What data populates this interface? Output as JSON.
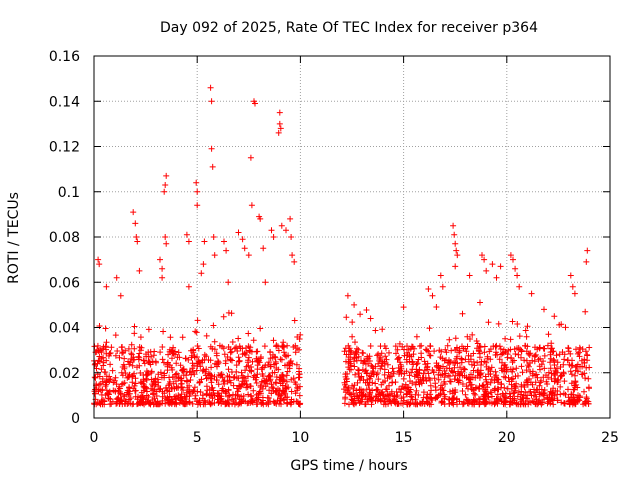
{
  "chart_data": {
    "type": "scatter",
    "title": "Day 092 of 2025, Rate Of TEC Index for receiver p364",
    "xlabel": "GPS time / hours",
    "ylabel": "ROTI / TECUs",
    "xlim": [
      0,
      25
    ],
    "ylim": [
      0,
      0.16
    ],
    "xticks": [
      0,
      5,
      10,
      15,
      20,
      25
    ],
    "yticks": [
      0,
      0.02,
      0.04,
      0.06,
      0.08,
      0.1,
      0.12,
      0.14,
      0.16
    ],
    "xtick_labels": [
      "0",
      "5",
      "10",
      "15",
      "20",
      "25"
    ],
    "ytick_labels": [
      "0",
      "0.02",
      "0.04",
      "0.06",
      "0.08",
      "0.1",
      "0.12",
      "0.14",
      "0.16"
    ],
    "grid": true,
    "marker": "+",
    "color": "#ff0000",
    "segments": [
      {
        "start": 0.0,
        "end": 10.0
      },
      {
        "start": 12.1,
        "end": 24.0
      }
    ],
    "outliers": [
      {
        "x": 0.2,
        "y": 0.07
      },
      {
        "x": 0.25,
        "y": 0.068
      },
      {
        "x": 0.6,
        "y": 0.058
      },
      {
        "x": 1.1,
        "y": 0.062
      },
      {
        "x": 1.3,
        "y": 0.054
      },
      {
        "x": 1.9,
        "y": 0.091
      },
      {
        "x": 2.0,
        "y": 0.086
      },
      {
        "x": 2.05,
        "y": 0.08
      },
      {
        "x": 2.1,
        "y": 0.078
      },
      {
        "x": 2.2,
        "y": 0.065
      },
      {
        "x": 3.2,
        "y": 0.07
      },
      {
        "x": 3.3,
        "y": 0.066
      },
      {
        "x": 3.5,
        "y": 0.107
      },
      {
        "x": 3.45,
        "y": 0.103
      },
      {
        "x": 3.4,
        "y": 0.1
      },
      {
        "x": 3.45,
        "y": 0.08
      },
      {
        "x": 3.5,
        "y": 0.077
      },
      {
        "x": 3.3,
        "y": 0.062
      },
      {
        "x": 4.5,
        "y": 0.081
      },
      {
        "x": 4.6,
        "y": 0.078
      },
      {
        "x": 4.6,
        "y": 0.058
      },
      {
        "x": 4.95,
        "y": 0.104
      },
      {
        "x": 5.0,
        "y": 0.1
      },
      {
        "x": 5.0,
        "y": 0.094
      },
      {
        "x": 5.2,
        "y": 0.064
      },
      {
        "x": 5.35,
        "y": 0.078
      },
      {
        "x": 5.3,
        "y": 0.068
      },
      {
        "x": 5.65,
        "y": 0.146
      },
      {
        "x": 5.7,
        "y": 0.14
      },
      {
        "x": 5.7,
        "y": 0.119
      },
      {
        "x": 5.75,
        "y": 0.111
      },
      {
        "x": 5.8,
        "y": 0.08
      },
      {
        "x": 5.85,
        "y": 0.072
      },
      {
        "x": 6.3,
        "y": 0.078
      },
      {
        "x": 6.4,
        "y": 0.074
      },
      {
        "x": 6.5,
        "y": 0.06
      },
      {
        "x": 7.0,
        "y": 0.082
      },
      {
        "x": 7.2,
        "y": 0.079
      },
      {
        "x": 7.3,
        "y": 0.075
      },
      {
        "x": 7.5,
        "y": 0.072
      },
      {
        "x": 7.6,
        "y": 0.115
      },
      {
        "x": 7.65,
        "y": 0.094
      },
      {
        "x": 7.75,
        "y": 0.14
      },
      {
        "x": 7.8,
        "y": 0.139
      },
      {
        "x": 8.0,
        "y": 0.089
      },
      {
        "x": 8.05,
        "y": 0.088
      },
      {
        "x": 8.2,
        "y": 0.075
      },
      {
        "x": 8.3,
        "y": 0.06
      },
      {
        "x": 8.6,
        "y": 0.083
      },
      {
        "x": 8.7,
        "y": 0.08
      },
      {
        "x": 9.0,
        "y": 0.135
      },
      {
        "x": 9.0,
        "y": 0.13
      },
      {
        "x": 9.05,
        "y": 0.128
      },
      {
        "x": 8.95,
        "y": 0.126
      },
      {
        "x": 9.1,
        "y": 0.085
      },
      {
        "x": 9.3,
        "y": 0.083
      },
      {
        "x": 9.5,
        "y": 0.088
      },
      {
        "x": 9.55,
        "y": 0.08
      },
      {
        "x": 9.6,
        "y": 0.072
      },
      {
        "x": 9.7,
        "y": 0.069
      },
      {
        "x": 12.3,
        "y": 0.054
      },
      {
        "x": 12.6,
        "y": 0.05
      },
      {
        "x": 13.4,
        "y": 0.044
      },
      {
        "x": 15.0,
        "y": 0.049
      },
      {
        "x": 16.2,
        "y": 0.057
      },
      {
        "x": 16.4,
        "y": 0.054
      },
      {
        "x": 16.8,
        "y": 0.063
      },
      {
        "x": 16.9,
        "y": 0.058
      },
      {
        "x": 17.4,
        "y": 0.085
      },
      {
        "x": 17.45,
        "y": 0.081
      },
      {
        "x": 17.5,
        "y": 0.077
      },
      {
        "x": 17.55,
        "y": 0.074
      },
      {
        "x": 17.6,
        "y": 0.072
      },
      {
        "x": 17.5,
        "y": 0.067
      },
      {
        "x": 18.2,
        "y": 0.063
      },
      {
        "x": 18.8,
        "y": 0.072
      },
      {
        "x": 18.9,
        "y": 0.07
      },
      {
        "x": 19.0,
        "y": 0.065
      },
      {
        "x": 19.3,
        "y": 0.068
      },
      {
        "x": 19.5,
        "y": 0.062
      },
      {
        "x": 19.7,
        "y": 0.067
      },
      {
        "x": 20.2,
        "y": 0.072
      },
      {
        "x": 20.3,
        "y": 0.07
      },
      {
        "x": 20.4,
        "y": 0.066
      },
      {
        "x": 20.5,
        "y": 0.063
      },
      {
        "x": 20.6,
        "y": 0.058
      },
      {
        "x": 21.2,
        "y": 0.055
      },
      {
        "x": 21.8,
        "y": 0.048
      },
      {
        "x": 22.3,
        "y": 0.045
      },
      {
        "x": 23.1,
        "y": 0.063
      },
      {
        "x": 23.2,
        "y": 0.058
      },
      {
        "x": 23.3,
        "y": 0.055
      },
      {
        "x": 23.9,
        "y": 0.074
      },
      {
        "x": 23.85,
        "y": 0.069
      },
      {
        "x": 23.8,
        "y": 0.047
      }
    ]
  }
}
